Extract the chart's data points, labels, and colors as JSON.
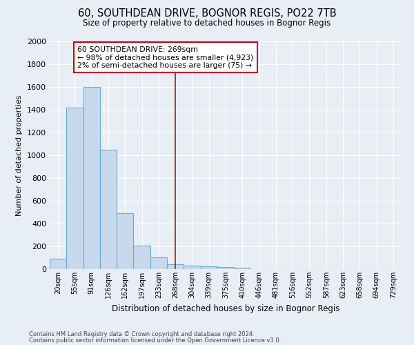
{
  "title": "60, SOUTHDEAN DRIVE, BOGNOR REGIS, PO22 7TB",
  "subtitle": "Size of property relative to detached houses in Bognor Regis",
  "xlabel": "Distribution of detached houses by size in Bognor Regis",
  "ylabel": "Number of detached properties",
  "categories": [
    "20sqm",
    "55sqm",
    "91sqm",
    "126sqm",
    "162sqm",
    "197sqm",
    "233sqm",
    "268sqm",
    "304sqm",
    "339sqm",
    "375sqm",
    "410sqm",
    "446sqm",
    "481sqm",
    "516sqm",
    "552sqm",
    "587sqm",
    "623sqm",
    "658sqm",
    "694sqm",
    "729sqm"
  ],
  "values": [
    90,
    1420,
    1600,
    1050,
    490,
    205,
    105,
    45,
    30,
    25,
    20,
    15,
    0,
    0,
    0,
    0,
    0,
    0,
    0,
    0,
    0
  ],
  "bar_color": "#c8d9ed",
  "bar_edge_color": "#6aaad4",
  "vline_x": 7,
  "vline_color": "#8b2020",
  "annotation_line1": "60 SOUTHDEAN DRIVE: 269sqm",
  "annotation_line2": "← 98% of detached houses are smaller (4,923)",
  "annotation_line3": "2% of semi-detached houses are larger (75) →",
  "annotation_box_facecolor": "#ffffff",
  "annotation_box_edgecolor": "#cc0000",
  "ylim": [
    0,
    2000
  ],
  "yticks": [
    0,
    200,
    400,
    600,
    800,
    1000,
    1200,
    1400,
    1600,
    1800,
    2000
  ],
  "bg_color": "#e8eef5",
  "grid_color": "#ffffff",
  "footer1": "Contains HM Land Registry data © Crown copyright and database right 2024.",
  "footer2": "Contains public sector information licensed under the Open Government Licence v3.0."
}
